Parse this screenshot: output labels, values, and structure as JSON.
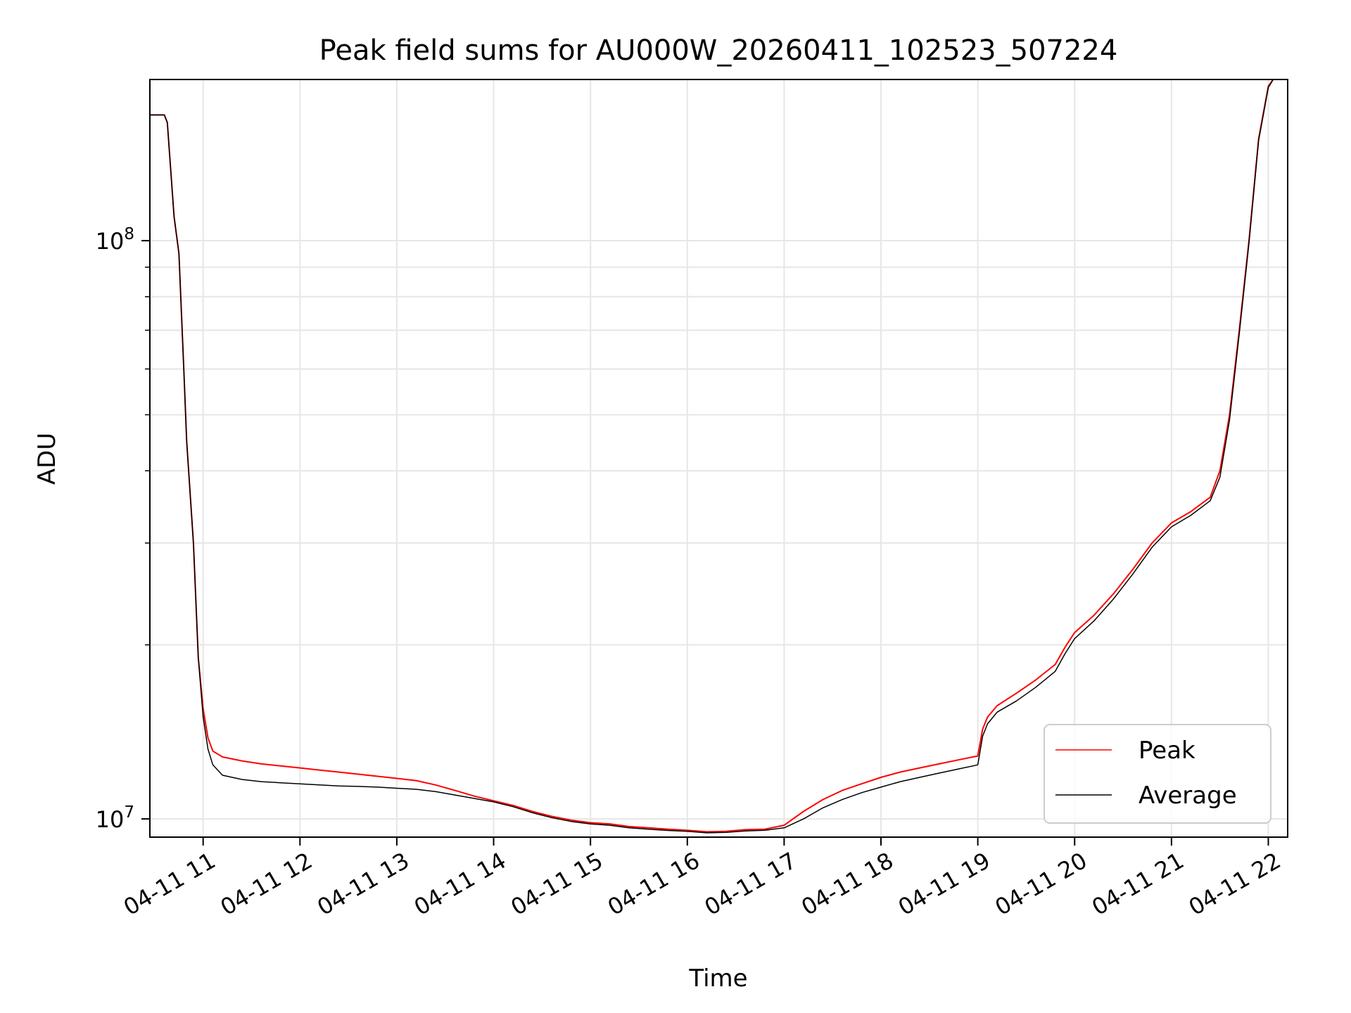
{
  "chart_data": {
    "type": "line",
    "title": "Peak field sums for AU000W_20260411_102523_507224",
    "xlabel": "Time",
    "ylabel": "ADU",
    "yscale": "log",
    "xlim": [
      10.45,
      22.2
    ],
    "ylim": [
      9300000,
      190000000
    ],
    "grid": true,
    "x_tick_values": [
      11,
      12,
      13,
      14,
      15,
      16,
      17,
      18,
      19,
      20,
      21,
      22
    ],
    "x_tick_labels": [
      "04-11 11",
      "04-11 12",
      "04-11 13",
      "04-11 14",
      "04-11 15",
      "04-11 16",
      "04-11 17",
      "04-11 18",
      "04-11 19",
      "04-11 20",
      "04-11 21",
      "04-11 22"
    ],
    "y_major_ticks": [
      {
        "value": 10000000,
        "base": "10",
        "exp": "7"
      },
      {
        "value": 100000000,
        "base": "10",
        "exp": "8"
      }
    ],
    "y_minor_ticks": [
      20000000,
      30000000,
      40000000,
      50000000,
      60000000,
      70000000,
      80000000,
      90000000
    ],
    "legend_position": "lower-right",
    "series": [
      {
        "name": "Peak",
        "color": "#ff0000",
        "x": [
          10.45,
          10.6,
          10.63,
          10.7,
          10.75,
          10.8,
          10.83,
          10.9,
          10.95,
          11.0,
          11.05,
          11.1,
          11.2,
          11.4,
          11.6,
          11.8,
          12.0,
          12.2,
          12.4,
          12.6,
          12.8,
          13.0,
          13.2,
          13.4,
          13.6,
          13.8,
          14.0,
          14.2,
          14.4,
          14.6,
          14.8,
          15.0,
          15.2,
          15.4,
          15.6,
          15.8,
          16.0,
          16.2,
          16.4,
          16.6,
          16.8,
          17.0,
          17.2,
          17.4,
          17.6,
          17.8,
          18.0,
          18.2,
          18.4,
          18.6,
          18.8,
          19.0,
          19.05,
          19.1,
          19.2,
          19.4,
          19.6,
          19.8,
          19.9,
          20.0,
          20.2,
          20.4,
          20.6,
          20.8,
          21.0,
          21.2,
          21.4,
          21.5,
          21.6,
          21.7,
          21.8,
          21.9,
          22.0,
          22.05
        ],
        "values": [
          165000000,
          165000000,
          160000000,
          110000000,
          95000000,
          60000000,
          45000000,
          30000000,
          19000000,
          15500000,
          13800000,
          13100000,
          12800000,
          12600000,
          12450000,
          12350000,
          12250000,
          12150000,
          12050000,
          11950000,
          11850000,
          11750000,
          11650000,
          11450000,
          11200000,
          10950000,
          10750000,
          10550000,
          10300000,
          10100000,
          9950000,
          9850000,
          9800000,
          9700000,
          9650000,
          9600000,
          9560000,
          9500000,
          9520000,
          9580000,
          9600000,
          9750000,
          10300000,
          10800000,
          11200000,
          11500000,
          11800000,
          12050000,
          12250000,
          12450000,
          12650000,
          12850000,
          14300000,
          15000000,
          15700000,
          16500000,
          17400000,
          18500000,
          19800000,
          21000000,
          22500000,
          24500000,
          27000000,
          30000000,
          32500000,
          34000000,
          36000000,
          40000000,
          50000000,
          70000000,
          100000000,
          150000000,
          185000000,
          190000000
        ]
      },
      {
        "name": "Average",
        "color": "#000000",
        "x": [
          10.45,
          10.6,
          10.63,
          10.7,
          10.75,
          10.8,
          10.83,
          10.9,
          10.95,
          11.0,
          11.05,
          11.1,
          11.2,
          11.4,
          11.6,
          11.8,
          12.0,
          12.2,
          12.4,
          12.6,
          12.8,
          13.0,
          13.2,
          13.4,
          13.6,
          13.8,
          14.0,
          14.2,
          14.4,
          14.6,
          14.8,
          15.0,
          15.2,
          15.4,
          15.6,
          15.8,
          16.0,
          16.2,
          16.4,
          16.6,
          16.8,
          17.0,
          17.2,
          17.4,
          17.6,
          17.8,
          18.0,
          18.2,
          18.4,
          18.6,
          18.8,
          19.0,
          19.05,
          19.1,
          19.2,
          19.4,
          19.6,
          19.8,
          19.9,
          20.0,
          20.2,
          20.4,
          20.6,
          20.8,
          21.0,
          21.2,
          21.4,
          21.5,
          21.6,
          21.7,
          21.8,
          21.9,
          22.0,
          22.05
        ],
        "values": [
          165000000,
          165000000,
          160000000,
          110000000,
          95000000,
          60000000,
          45000000,
          30000000,
          19000000,
          15000000,
          13200000,
          12400000,
          11900000,
          11700000,
          11600000,
          11550000,
          11500000,
          11450000,
          11400000,
          11380000,
          11350000,
          11300000,
          11250000,
          11150000,
          11000000,
          10850000,
          10700000,
          10500000,
          10250000,
          10050000,
          9900000,
          9800000,
          9750000,
          9650000,
          9600000,
          9550000,
          9520000,
          9460000,
          9480000,
          9530000,
          9560000,
          9650000,
          10000000,
          10450000,
          10800000,
          11100000,
          11350000,
          11600000,
          11800000,
          12000000,
          12200000,
          12400000,
          13900000,
          14600000,
          15300000,
          16000000,
          16900000,
          18000000,
          19300000,
          20500000,
          22000000,
          24000000,
          26500000,
          29500000,
          32000000,
          33500000,
          35500000,
          39000000,
          49000000,
          69000000,
          99000000,
          149000000,
          184000000,
          190000000
        ]
      }
    ]
  }
}
